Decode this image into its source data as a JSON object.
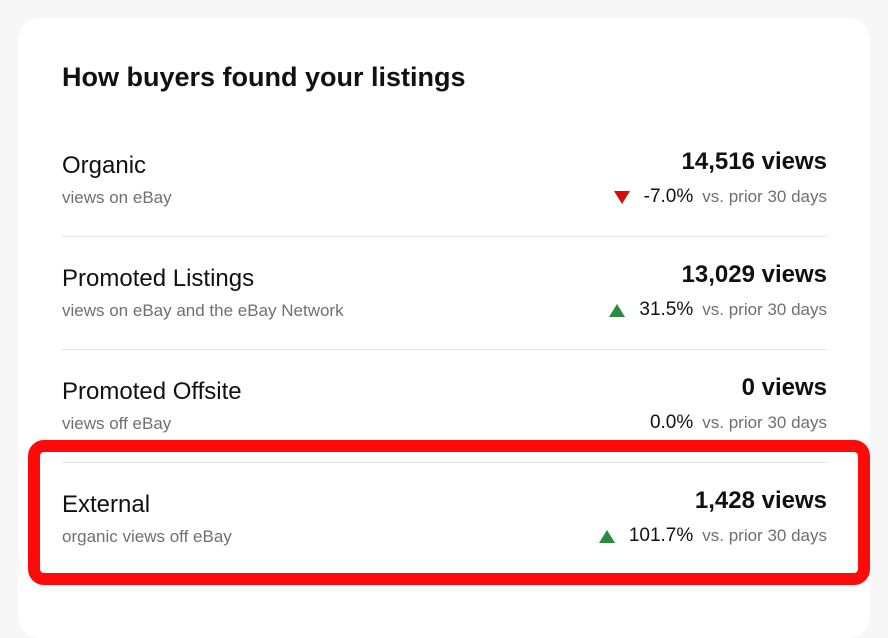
{
  "title": "How buyers found your listings",
  "rows": [
    {
      "name": "Organic",
      "description": "views on eBay",
      "views": "14,516 views",
      "change": "-7.0%",
      "comparison": "vs. prior 30 days"
    },
    {
      "name": "Promoted Listings",
      "description": "views on eBay and the eBay Network",
      "views": "13,029 views",
      "change": "31.5%",
      "comparison": "vs. prior 30 days"
    },
    {
      "name": "Promoted Offsite",
      "description": "views off eBay",
      "views": "0 views",
      "change": "0.0%",
      "comparison": "vs. prior 30 days"
    },
    {
      "name": "External",
      "description": "organic views off eBay",
      "views": "1,428 views",
      "change": "101.7%",
      "comparison": "vs. prior 30 days"
    }
  ]
}
